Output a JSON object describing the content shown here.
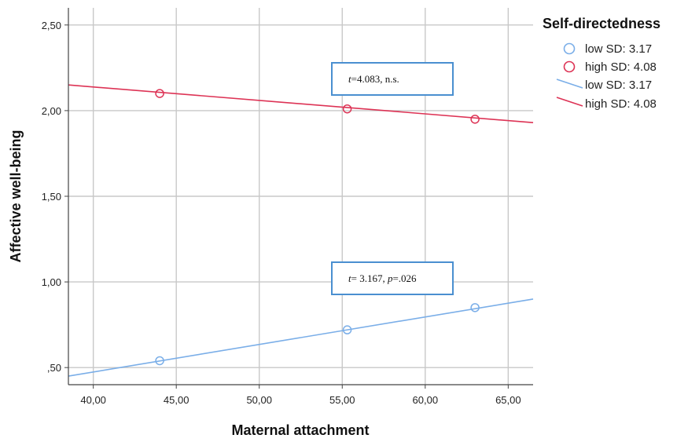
{
  "chart_data": {
    "type": "line",
    "xlabel": "Maternal attachment",
    "ylabel": "Affective well-being",
    "xlim": [
      38.5,
      66.5
    ],
    "ylim": [
      0.4,
      2.6
    ],
    "x_ticks": [
      "40,00",
      "45,00",
      "50,00",
      "55,00",
      "60,00",
      "65,00"
    ],
    "x_tick_values": [
      40,
      45,
      50,
      55,
      60,
      65
    ],
    "y_ticks": [
      ",50",
      "1,00",
      "1,50",
      "2,00",
      "2,50"
    ],
    "y_tick_values": [
      0.5,
      1.0,
      1.5,
      2.0,
      2.5
    ],
    "grid": true,
    "legend": {
      "title": "Self-directedness",
      "placement": "top-right",
      "marker_entries": [
        "low SD: 3.17",
        "high SD: 4.08"
      ],
      "line_entries": [
        "low SD: 3.17",
        "high SD: 4.08"
      ]
    },
    "series": [
      {
        "name": "low SD: 3.17",
        "color": "#7aaee8",
        "points": [
          {
            "x": 44.0,
            "y": 0.54
          },
          {
            "x": 55.3,
            "y": 0.72
          },
          {
            "x": 63.0,
            "y": 0.85
          }
        ],
        "fit_line": [
          {
            "x": 38.5,
            "y": 0.45
          },
          {
            "x": 66.5,
            "y": 0.9
          }
        ]
      },
      {
        "name": "high SD: 4.08",
        "color": "#dd3355",
        "points": [
          {
            "x": 44.0,
            "y": 2.1
          },
          {
            "x": 55.3,
            "y": 2.01
          },
          {
            "x": 63.0,
            "y": 1.95
          }
        ],
        "fit_line": [
          {
            "x": 38.5,
            "y": 2.15
          },
          {
            "x": 66.5,
            "y": 1.93
          }
        ]
      }
    ],
    "annotations": [
      {
        "series": "high SD: 4.08",
        "italic": "t",
        "text": "=4.083, n.s."
      },
      {
        "series": "low SD: 3.17",
        "italic": "t",
        "text": "= 3.167, ",
        "italic2": "p",
        "text2": "=.026"
      }
    ],
    "annotation_border_color": "#4a8fd0"
  }
}
